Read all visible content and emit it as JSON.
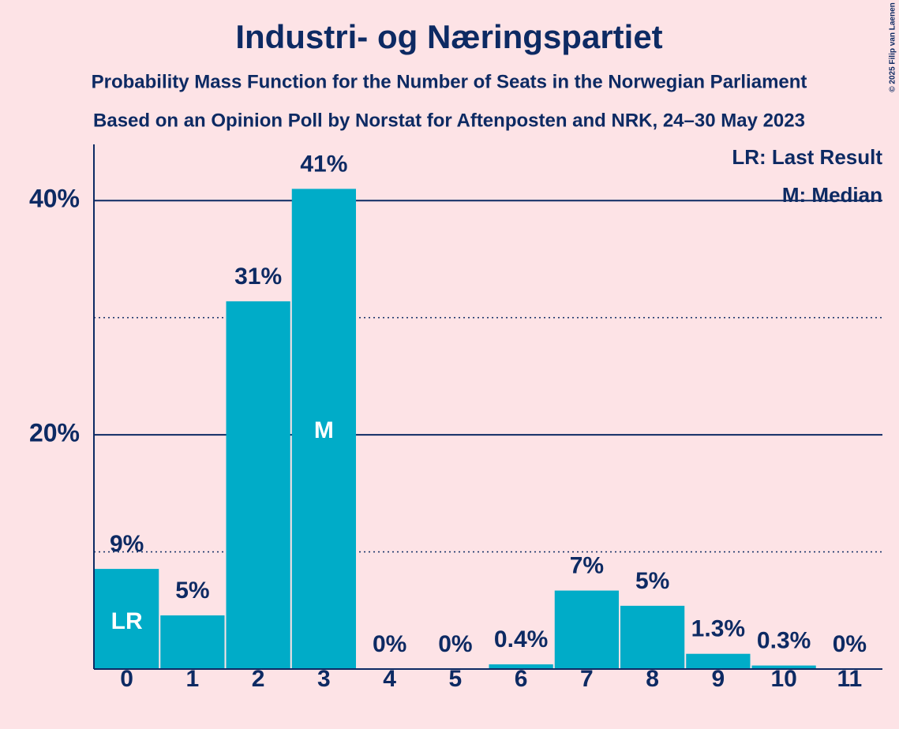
{
  "chart_data": {
    "type": "bar",
    "title": "Industri- og Næringspartiet",
    "subtitle": "Probability Mass Function for the Number of Seats in the Norwegian Parliament",
    "subtitle2": "Based on an Opinion Poll by Norstat for Aftenposten and NRK, 24–30 May 2023",
    "categories": [
      "0",
      "1",
      "2",
      "3",
      "4",
      "5",
      "6",
      "7",
      "8",
      "9",
      "10",
      "11"
    ],
    "values": [
      8.55,
      4.58,
      31.4,
      41.0,
      0,
      0,
      0.4,
      6.7,
      5.4,
      1.3,
      0.3,
      0
    ],
    "value_labels": [
      "9%",
      "5%",
      "31%",
      "41%",
      "0%",
      "0%",
      "0.4%",
      "7%",
      "5%",
      "1.3%",
      "0.3%",
      "0%"
    ],
    "bar_annotations": [
      "LR",
      null,
      null,
      "M",
      null,
      null,
      null,
      null,
      null,
      null,
      null,
      null
    ],
    "legend": [
      "LR: Last Result",
      "M: Median"
    ],
    "copyright": "© 2025 Filip van Laenen",
    "color": "#00acc8",
    "ylim": [
      0,
      45
    ],
    "yticks": [
      {
        "value": 20,
        "label": "20%"
      },
      {
        "value": 40,
        "label": "40%"
      }
    ],
    "minor_gridlines": [
      10,
      30
    ],
    "grid": true
  }
}
